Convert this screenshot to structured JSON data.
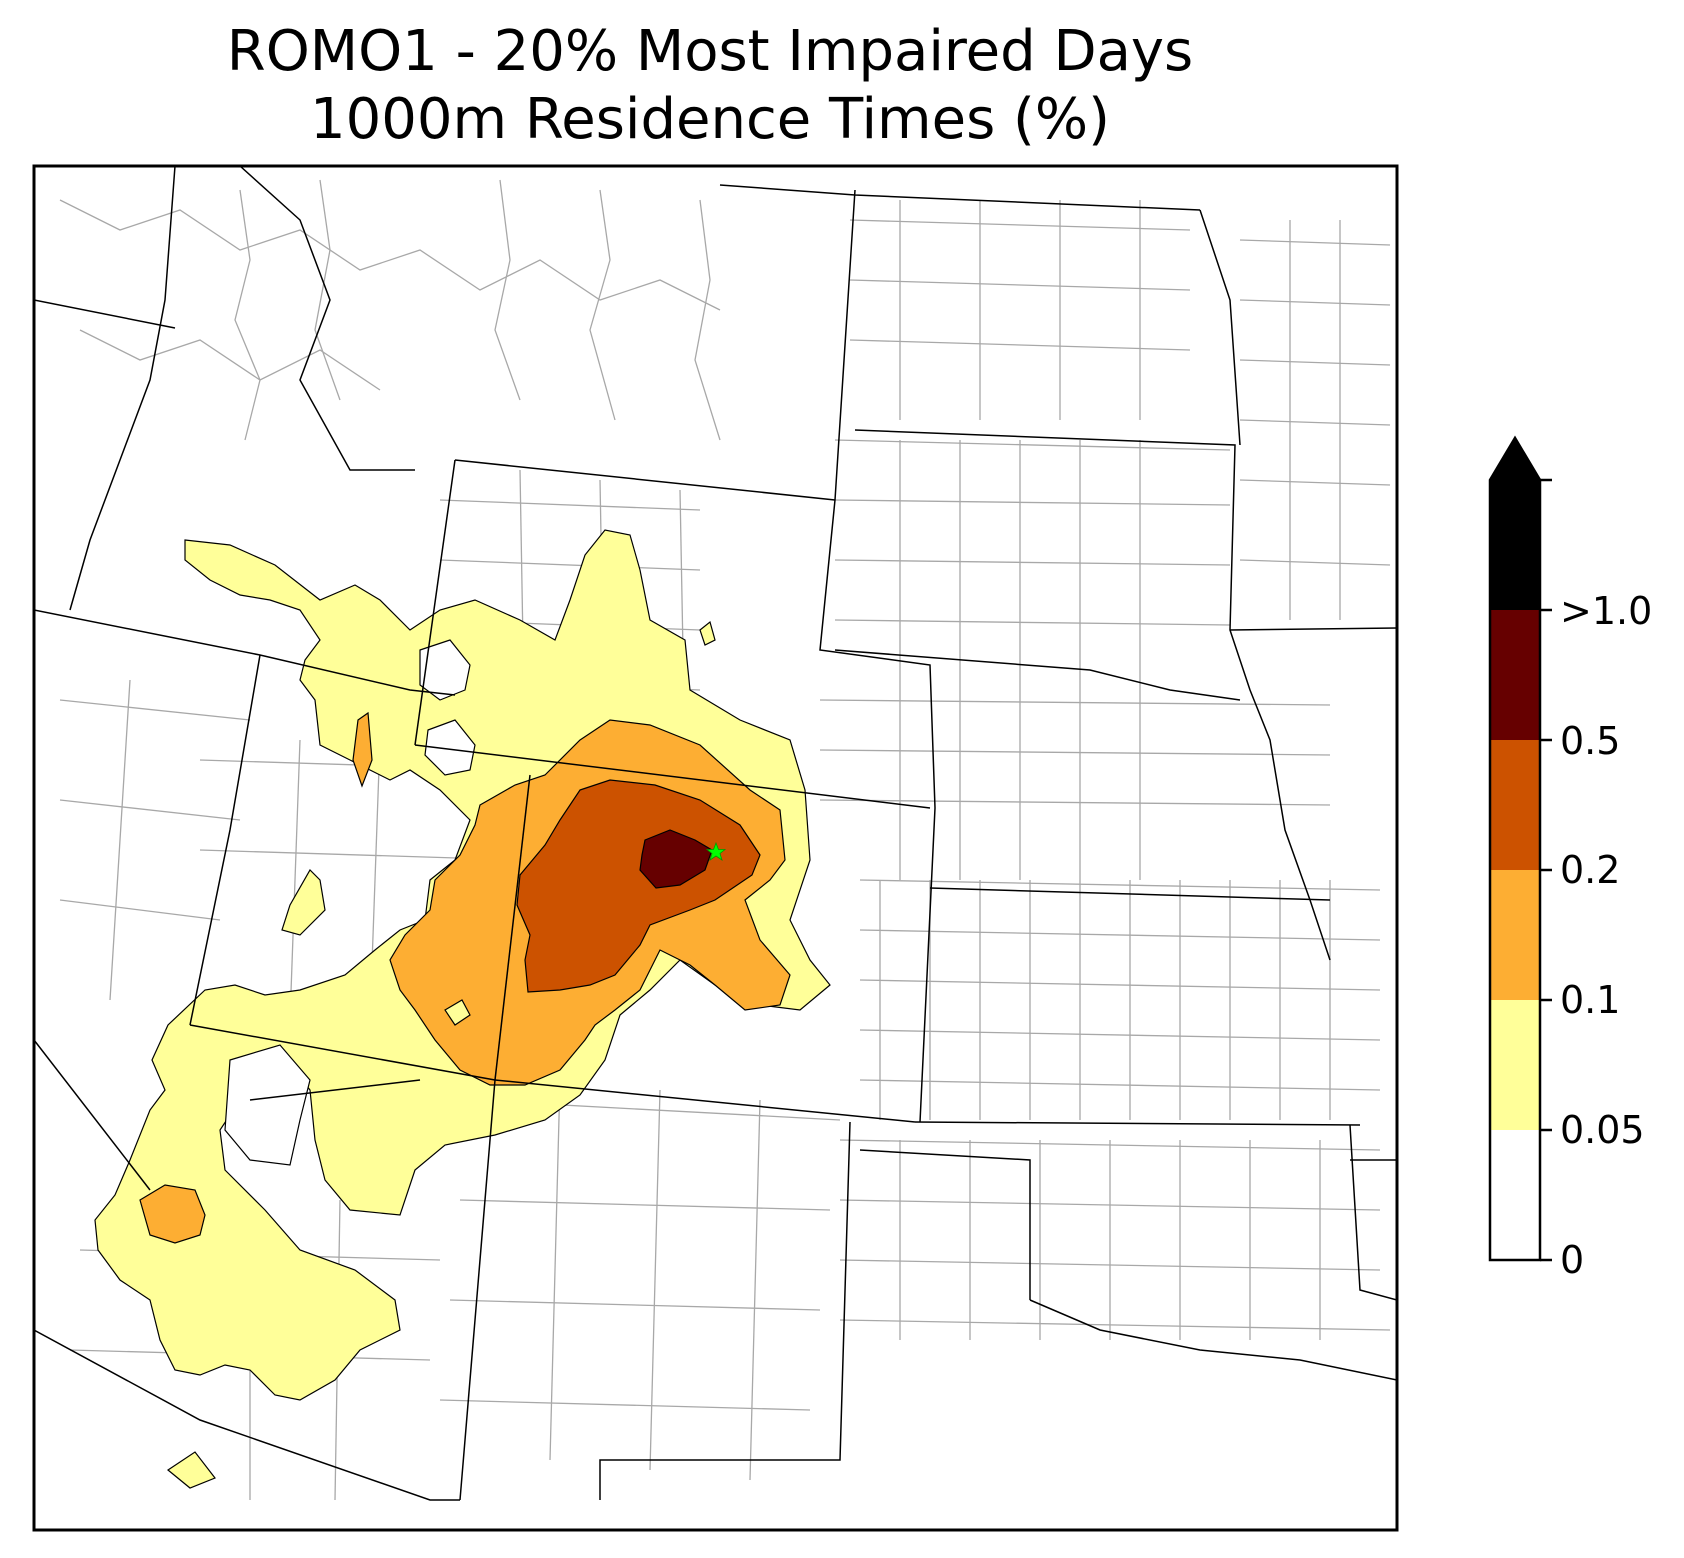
{
  "title": {
    "line1": "ROMO1 - 20% Most Impaired Days",
    "line2": "1000m Residence Times (%)"
  },
  "colorbar": {
    "extend": "max",
    "bins": [
      {
        "from": 0,
        "to": 0.05,
        "color": "#ffffff"
      },
      {
        "from": 0.05,
        "to": 0.1,
        "color": "#ffff99"
      },
      {
        "from": 0.1,
        "to": 0.2,
        "color": "#fdae33"
      },
      {
        "from": 0.2,
        "to": 0.5,
        "color": "#cc5200"
      },
      {
        "from": 0.5,
        "to": 1.0,
        "color": "#660000"
      },
      {
        "from": 1.0,
        "to": null,
        "color": "#000000"
      }
    ],
    "tick_labels": [
      "0",
      "0.05",
      "0.1",
      "0.2",
      "0.5",
      ">1.0"
    ]
  },
  "map": {
    "site_marker": {
      "label": "ROMO1",
      "color": "#00ff00",
      "shape": "star"
    },
    "state_border_color": "#000000",
    "county_border_color": "#a8a8a8"
  }
}
